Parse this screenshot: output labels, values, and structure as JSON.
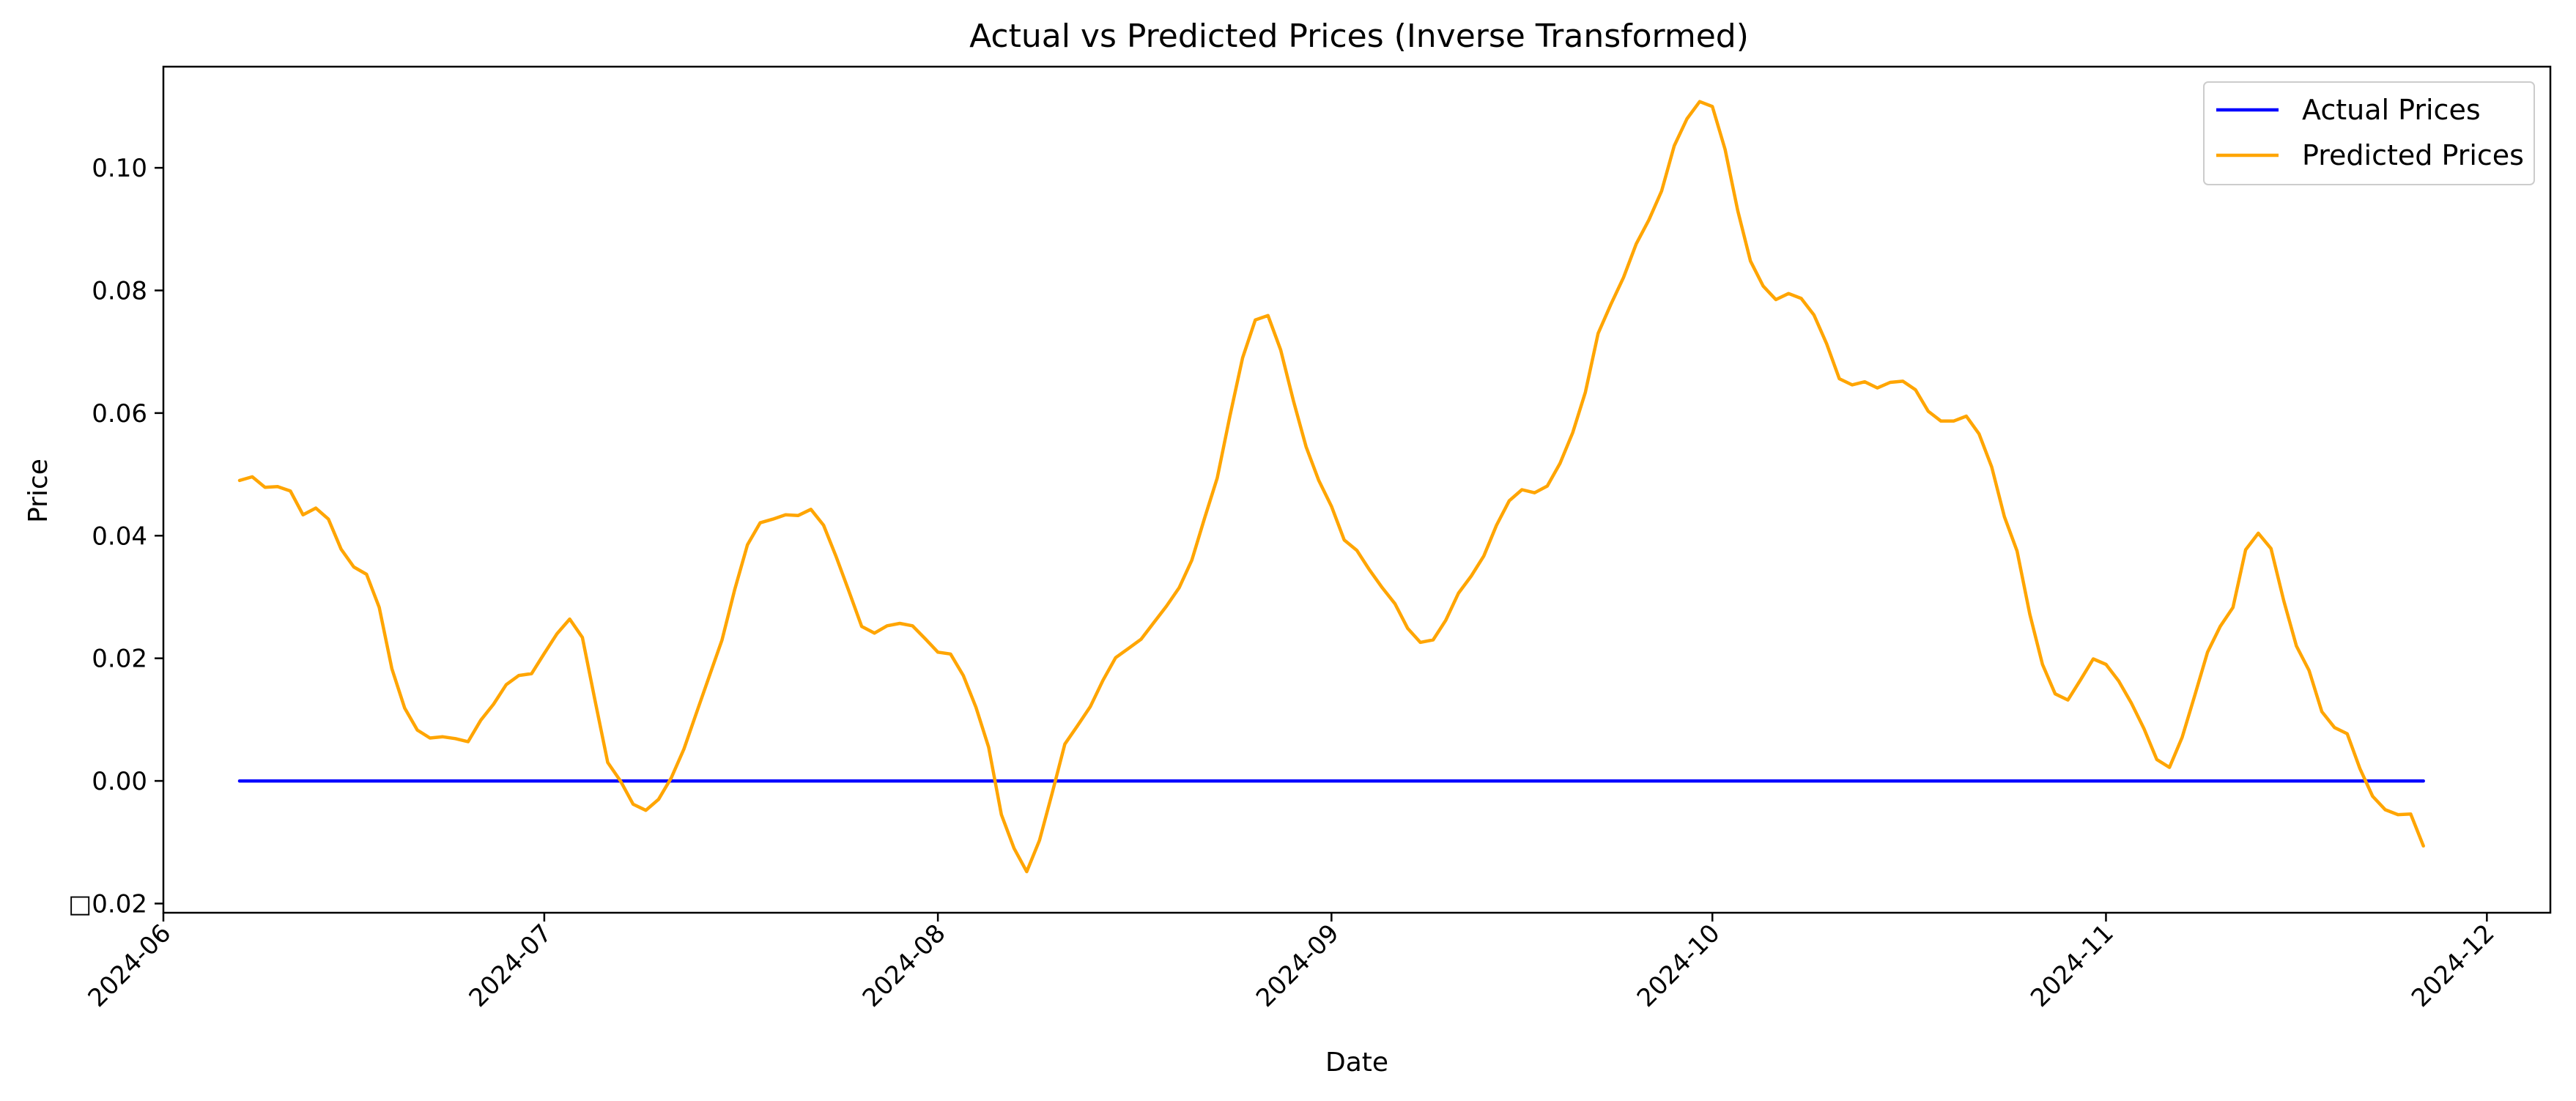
{
  "chart_data": {
    "type": "line",
    "title": "Actual vs Predicted Prices (Inverse Transformed)",
    "xlabel": "Date",
    "ylabel": "Price",
    "xlim": [
      "2024-06-01",
      "2024-12-06"
    ],
    "ylim": [
      -0.0215,
      0.1165
    ],
    "grid": false,
    "legend_position": "top-right",
    "x_ticks": [
      "2024-06",
      "2024-07",
      "2024-08",
      "2024-09",
      "2024-10",
      "2024-11",
      "2024-12"
    ],
    "y_ticks": [
      -0.02,
      0.0,
      0.02,
      0.04,
      0.06,
      0.08,
      0.1
    ],
    "y_tick_labels": [
      "□0.02",
      "0.00",
      "0.02",
      "0.04",
      "0.06",
      "0.08",
      "0.10"
    ],
    "series": [
      {
        "name": "Actual Prices",
        "color": "#0000ff",
        "x": [
          "2024-06-07",
          "2024-11-26"
        ],
        "y": [
          0.0,
          0.0
        ]
      },
      {
        "name": "Predicted Prices",
        "color": "#ffa500",
        "x": [
          "2024-06-07",
          "2024-06-08",
          "2024-06-09",
          "2024-06-10",
          "2024-06-11",
          "2024-06-12",
          "2024-06-13",
          "2024-06-14",
          "2024-06-15",
          "2024-06-16",
          "2024-06-17",
          "2024-06-18",
          "2024-06-19",
          "2024-06-20",
          "2024-06-21",
          "2024-06-22",
          "2024-06-23",
          "2024-06-24",
          "2024-06-25",
          "2024-06-26",
          "2024-06-27",
          "2024-06-28",
          "2024-06-29",
          "2024-06-30",
          "2024-07-01",
          "2024-07-02",
          "2024-07-03",
          "2024-07-04",
          "2024-07-05",
          "2024-07-06",
          "2024-07-07",
          "2024-07-08",
          "2024-07-09",
          "2024-07-10",
          "2024-07-11",
          "2024-07-12",
          "2024-07-13",
          "2024-07-14",
          "2024-07-15",
          "2024-07-16",
          "2024-07-17",
          "2024-07-18",
          "2024-07-19",
          "2024-07-20",
          "2024-07-21",
          "2024-07-22",
          "2024-07-23",
          "2024-07-24",
          "2024-07-25",
          "2024-07-26",
          "2024-07-27",
          "2024-07-28",
          "2024-07-29",
          "2024-07-30",
          "2024-07-31",
          "2024-08-01",
          "2024-08-02",
          "2024-08-03",
          "2024-08-04",
          "2024-08-05",
          "2024-08-06",
          "2024-08-07",
          "2024-08-08",
          "2024-08-09",
          "2024-08-10",
          "2024-08-11",
          "2024-08-12",
          "2024-08-13",
          "2024-08-14",
          "2024-08-15",
          "2024-08-16",
          "2024-08-17",
          "2024-08-18",
          "2024-08-19",
          "2024-08-20",
          "2024-08-21",
          "2024-08-22",
          "2024-08-23",
          "2024-08-24",
          "2024-08-25",
          "2024-08-26",
          "2024-08-27",
          "2024-08-28",
          "2024-08-29",
          "2024-08-30",
          "2024-08-31",
          "2024-09-01",
          "2024-09-02",
          "2024-09-03",
          "2024-09-04",
          "2024-09-05",
          "2024-09-06",
          "2024-09-07",
          "2024-09-08",
          "2024-09-09",
          "2024-09-10",
          "2024-09-11",
          "2024-09-12",
          "2024-09-13",
          "2024-09-14",
          "2024-09-15",
          "2024-09-16",
          "2024-09-17",
          "2024-09-18",
          "2024-09-19",
          "2024-09-20",
          "2024-09-21",
          "2024-09-22",
          "2024-09-23",
          "2024-09-24",
          "2024-09-25",
          "2024-09-26",
          "2024-09-27",
          "2024-09-28",
          "2024-09-29",
          "2024-09-30",
          "2024-10-01",
          "2024-10-02",
          "2024-10-03",
          "2024-10-04",
          "2024-10-05",
          "2024-10-06",
          "2024-10-07",
          "2024-10-08",
          "2024-10-09",
          "2024-10-10",
          "2024-10-11",
          "2024-10-12",
          "2024-10-13",
          "2024-10-14",
          "2024-10-15",
          "2024-10-16",
          "2024-10-17",
          "2024-10-18",
          "2024-10-19",
          "2024-10-20",
          "2024-10-21",
          "2024-10-22",
          "2024-10-23",
          "2024-10-24",
          "2024-10-25",
          "2024-10-26",
          "2024-10-27",
          "2024-10-28",
          "2024-10-29",
          "2024-10-30",
          "2024-10-31",
          "2024-11-01",
          "2024-11-02",
          "2024-11-03",
          "2024-11-04",
          "2024-11-05",
          "2024-11-06",
          "2024-11-07",
          "2024-11-08",
          "2024-11-09",
          "2024-11-10",
          "2024-11-11",
          "2024-11-12",
          "2024-11-13",
          "2024-11-14",
          "2024-11-15",
          "2024-11-16",
          "2024-11-17",
          "2024-11-18",
          "2024-11-19",
          "2024-11-20",
          "2024-11-21",
          "2024-11-22",
          "2024-11-23",
          "2024-11-24",
          "2024-11-25",
          "2024-11-26"
        ],
        "y": [
          0.049,
          0.0496,
          0.0479,
          0.048,
          0.0473,
          0.0434,
          0.0445,
          0.0427,
          0.0378,
          0.0349,
          0.0337,
          0.0283,
          0.0183,
          0.0119,
          0.0083,
          0.007,
          0.0072,
          0.0069,
          0.0064,
          0.0099,
          0.0125,
          0.0157,
          0.0172,
          0.0175,
          0.0208,
          0.024,
          0.0264,
          0.0234,
          0.0131,
          0.003,
          0.0,
          -0.0038,
          -0.0048,
          -0.003,
          0.0005,
          0.0052,
          0.0112,
          0.0171,
          0.023,
          0.0312,
          0.0385,
          0.0421,
          0.0427,
          0.0434,
          0.0433,
          0.0443,
          0.0417,
          0.0365,
          0.0309,
          0.0252,
          0.0241,
          0.0253,
          0.0257,
          0.0253,
          0.0232,
          0.021,
          0.0207,
          0.0172,
          0.012,
          0.0055,
          -0.0055,
          -0.011,
          -0.0148,
          -0.0097,
          -0.002,
          0.006,
          0.009,
          0.0121,
          0.0164,
          0.0201,
          0.0216,
          0.0231,
          0.0258,
          0.0285,
          0.0315,
          0.036,
          0.0428,
          0.0494,
          0.0595,
          0.069,
          0.0752,
          0.0759,
          0.0703,
          0.062,
          0.0545,
          0.049,
          0.0448,
          0.0393,
          0.0376,
          0.0344,
          0.0315,
          0.0289,
          0.0249,
          0.0226,
          0.023,
          0.0262,
          0.0306,
          0.0334,
          0.0367,
          0.0417,
          0.0457,
          0.0475,
          0.047,
          0.0481,
          0.0518,
          0.0568,
          0.0634,
          0.073,
          0.0777,
          0.0821,
          0.0876,
          0.0915,
          0.0962,
          0.1036,
          0.108,
          0.1108,
          0.11,
          0.103,
          0.093,
          0.0848,
          0.0807,
          0.0785,
          0.0795,
          0.0787,
          0.076,
          0.0713,
          0.0656,
          0.0646,
          0.0651,
          0.0641,
          0.065,
          0.0652,
          0.0638,
          0.0603,
          0.0587,
          0.0587,
          0.0595,
          0.0566,
          0.0512,
          0.0431,
          0.0375,
          0.0272,
          0.019,
          0.0142,
          0.0132,
          0.0165,
          0.0199,
          0.019,
          0.0163,
          0.0127,
          0.0085,
          0.0035,
          0.0022,
          0.0071,
          0.014,
          0.021,
          0.0252,
          0.0283,
          0.0377,
          0.0404,
          0.0379,
          0.0294,
          0.022,
          0.018,
          0.0113,
          0.0087,
          0.0077,
          0.002,
          -0.0025,
          -0.0047,
          -0.0055,
          -0.0054,
          -0.0106
        ]
      }
    ]
  }
}
